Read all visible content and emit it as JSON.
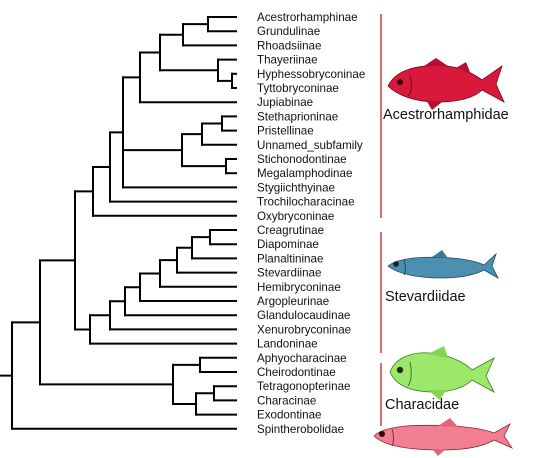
{
  "tree": {
    "leaves": [
      "Acestrorhamphinae",
      "Grundulinae",
      "Rhoadsiinae",
      "Thayeriinae",
      "Hyphessobryconinae",
      "Tyttobryconinae",
      "Jupiabinae",
      "Stethaprioninae",
      "Pristellinae",
      "Unnamed_subfamily",
      "Stichonodontinae",
      "Megalamphodinae",
      "Stygiichthyinae",
      "Trochilocharacinae",
      "Oxybryconinae",
      "Creagrutinae",
      "Diapominae",
      "Planaltininae",
      "Stevardiinae",
      "Hemibryconinae",
      "Argopleurinae",
      "Glandulocaudinae",
      "Xenurobryconinae",
      "Landoninae",
      "Aphyocharacinae",
      "Cheirodontinae",
      "Tetragonopterinae",
      "Characinae",
      "Exodontinae",
      "Spintherobolidae"
    ]
  },
  "clades": [
    {
      "label": "Acestrorhamphidae",
      "fish_color": "#d8193c",
      "fish": "red-fish-icon"
    },
    {
      "label": "Stevardiidae",
      "fish_color": "#4d8fb0",
      "fish": "blue-fish-icon"
    },
    {
      "label": "Characidae",
      "fish_color": "#9be86a",
      "fish": "green-fish-icon"
    },
    {
      "label": "",
      "fish_color": "#f27e91",
      "fish": "pink-fish-icon"
    }
  ],
  "colors": {
    "bracket": "#c8312c",
    "branch": "#000000"
  }
}
